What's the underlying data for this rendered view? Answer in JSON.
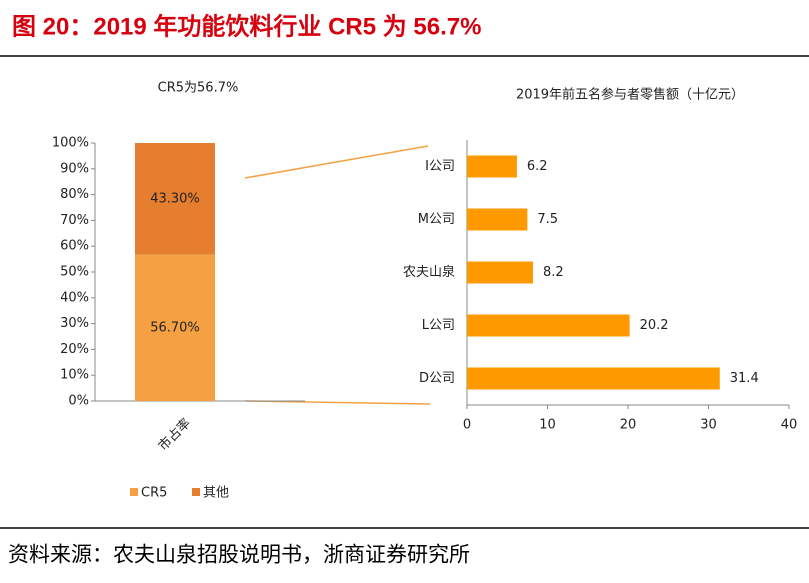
{
  "header": {
    "title": "图 20：2019 年功能饮料行业 CR5 为 56.7%"
  },
  "source": "资料来源：农夫山泉招股说明书，浙商证券研究所",
  "chart_data": [
    {
      "type": "stacked-bar",
      "title": "CR5为56.7%",
      "categories": [
        "市占率"
      ],
      "series": [
        {
          "name": "CR5",
          "color": "#f5a043",
          "values": [
            56.7
          ],
          "value_labels": [
            "56.70%"
          ]
        },
        {
          "name": "其他",
          "color": "#e67e30",
          "values": [
            43.3
          ],
          "value_labels": [
            "43.30%"
          ]
        }
      ],
      "ylim": [
        0,
        100
      ],
      "yticks": [
        {
          "value": 0,
          "label": "0%"
        },
        {
          "value": 10,
          "label": "10%"
        },
        {
          "value": 20,
          "label": "20%"
        },
        {
          "value": 30,
          "label": "30%"
        },
        {
          "value": 40,
          "label": "40%"
        },
        {
          "value": 50,
          "label": "50%"
        },
        {
          "value": 60,
          "label": "60%"
        },
        {
          "value": 70,
          "label": "70%"
        },
        {
          "value": 80,
          "label": "80%"
        },
        {
          "value": 90,
          "label": "90%"
        },
        {
          "value": 100,
          "label": "100%"
        }
      ],
      "legend": "bottom"
    },
    {
      "type": "hbar",
      "title": "2019年前五名参与者零售额（十亿元）",
      "categories": [
        "I公司",
        "M公司",
        "农夫山泉",
        "L公司",
        "D公司"
      ],
      "values": [
        6.2,
        7.5,
        8.2,
        20.2,
        31.4
      ],
      "color": "#ff9900",
      "xlim": [
        0,
        40
      ],
      "xticks": [
        0,
        10,
        20,
        30,
        40
      ]
    }
  ]
}
